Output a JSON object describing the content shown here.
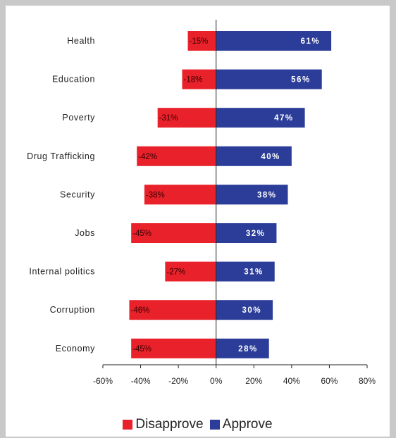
{
  "chart_data": {
    "type": "bar",
    "orientation": "horizontal",
    "stacked": "diverging",
    "categories": [
      "Health",
      "Education",
      "Poverty",
      "Drug Trafficking",
      "Security",
      "Jobs",
      "Internal politics",
      "Corruption",
      "Economy"
    ],
    "series": [
      {
        "name": "Disapprove",
        "color": "#e8212a",
        "values": [
          -15,
          -18,
          -31,
          -42,
          -38,
          -45,
          -27,
          -46,
          -45
        ],
        "labels": [
          "-15%",
          "-18%",
          "-31%",
          "-42%",
          "-38%",
          "-45%",
          "-27%",
          "-46%",
          "-45%"
        ]
      },
      {
        "name": "Approve",
        "color": "#2b3d98",
        "values": [
          61,
          56,
          47,
          40,
          38,
          32,
          31,
          30,
          28
        ],
        "labels": [
          "61%",
          "56%",
          "47%",
          "40%",
          "38%",
          "32%",
          "31%",
          "30%",
          "28%"
        ]
      }
    ],
    "xlim": [
      -60,
      80
    ],
    "xticks": [
      -60,
      -40,
      -20,
      0,
      20,
      40,
      60,
      80
    ],
    "xtick_labels": [
      "-60%",
      "-40%",
      "-20%",
      "0%",
      "20%",
      "40%",
      "60%",
      "80%"
    ],
    "grid": false,
    "legend_position": "bottom"
  }
}
